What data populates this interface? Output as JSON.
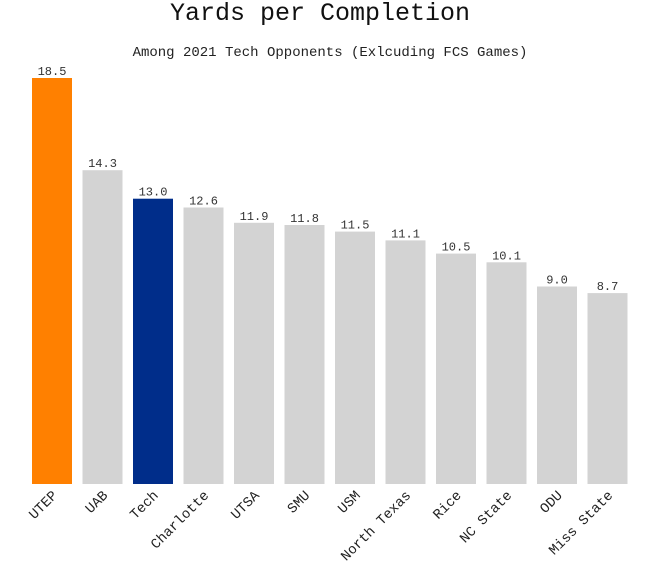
{
  "chart_data": {
    "type": "bar",
    "title": "Yards per Completion",
    "subtitle": "Among 2021 Tech Opponents (Exlcuding FCS Games)",
    "xlabel": "",
    "ylabel": "",
    "categories": [
      "UTEP",
      "UAB",
      "Tech",
      "Charlotte",
      "UTSA",
      "SMU",
      "USM",
      "North Texas",
      "Rice",
      "NC State",
      "ODU",
      "Miss State"
    ],
    "values": [
      18.5,
      14.3,
      13.0,
      12.6,
      11.9,
      11.8,
      11.5,
      11.1,
      10.5,
      10.1,
      9.0,
      8.7
    ],
    "value_labels": [
      "18.5",
      "14.3",
      "13.0",
      "12.6",
      "11.9",
      "11.8",
      "11.5",
      "11.1",
      "10.5",
      "10.1",
      "9.0",
      "8.7"
    ],
    "bar_colors": [
      "#ff8000",
      "#d3d3d3",
      "#002d8a",
      "#d3d3d3",
      "#d3d3d3",
      "#d3d3d3",
      "#d3d3d3",
      "#d3d3d3",
      "#d3d3d3",
      "#d3d3d3",
      "#d3d3d3",
      "#d3d3d3"
    ],
    "ylim": [
      0,
      18.5
    ],
    "grid": false,
    "legend": "none"
  }
}
